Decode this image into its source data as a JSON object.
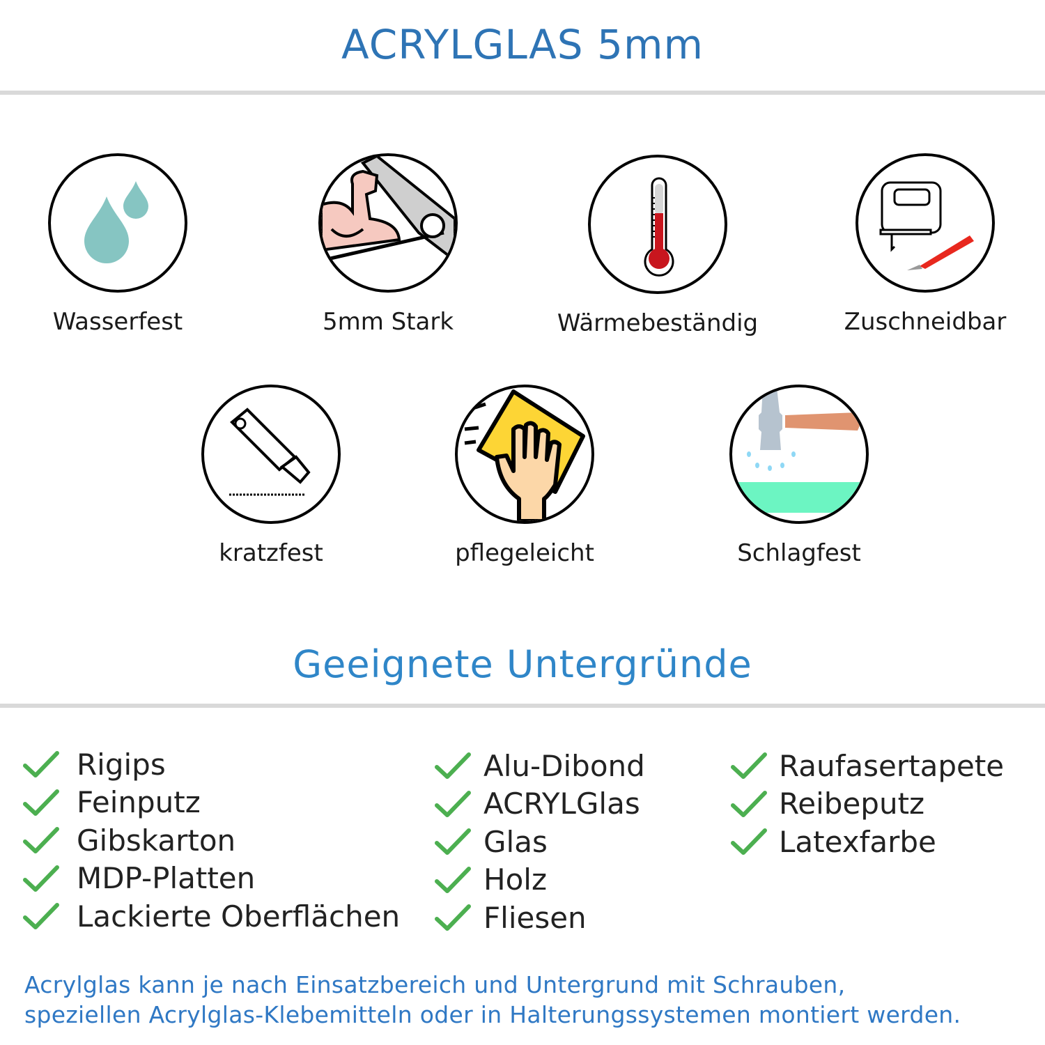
{
  "header": {
    "title": "ACRYLGLAS 5mm"
  },
  "features": [
    {
      "label": "Wasserfest",
      "icon": "water-drops-icon"
    },
    {
      "label": "5mm Stark",
      "icon": "strong-arm-icon"
    },
    {
      "label": "Wärmebeständig",
      "icon": "thermometer-icon"
    },
    {
      "label": "Zuschneidbar",
      "icon": "jigsaw-cutter-icon"
    },
    {
      "label": "kratzfest",
      "icon": "utility-knife-icon"
    },
    {
      "label": "pflegeleicht",
      "icon": "hand-cloth-icon"
    },
    {
      "label": "Schlagfest",
      "icon": "hammer-icon"
    }
  ],
  "surfaces": {
    "title": "Geeignete Untergründe",
    "columns": [
      [
        "Rigips",
        "Feinputz",
        "Gibskarton",
        "MDP-Platten",
        "Lackierte Oberflächen"
      ],
      [
        "Alu-Dibond",
        "ACRYLGlas",
        "Glas",
        "Holz",
        "Fliesen"
      ],
      [
        "Raufasertapete",
        "Reibeputz",
        "Latexfarbe"
      ]
    ]
  },
  "footer": {
    "line1": "Acrylglas kann je nach Einsatzbereich und Untergrund mit Schrauben,",
    "line2": "speziellen Acrylglas-Klebemitteln oder in Halterungssystemen montiert werden."
  },
  "colors": {
    "title": "#2e74b5",
    "subtitle": "#2f86c8",
    "check": "#4caf50",
    "rule": "#d9d9d9",
    "footer": "#2f78c4"
  }
}
